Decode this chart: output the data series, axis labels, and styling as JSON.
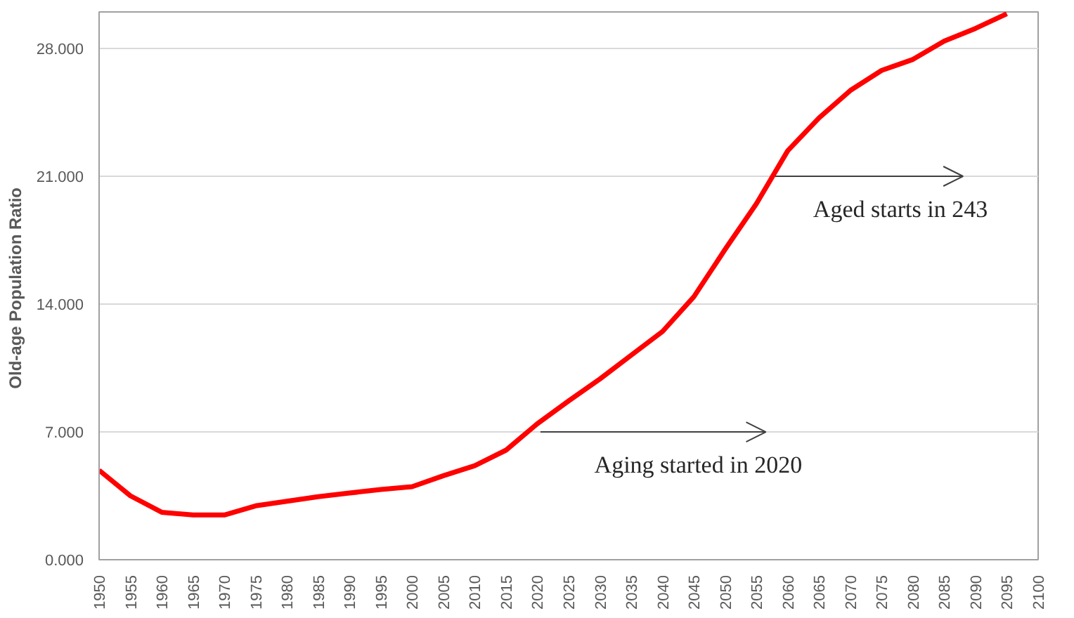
{
  "chart_data": {
    "type": "line",
    "ylabel": "Old-age  Population Ratio",
    "x": [
      1950,
      1955,
      1960,
      1965,
      1970,
      1975,
      1980,
      1985,
      1990,
      1995,
      2000,
      2005,
      2010,
      2015,
      2020,
      2025,
      2030,
      2035,
      2040,
      2045,
      2050,
      2055,
      2060,
      2065,
      2070,
      2075,
      2080,
      2085,
      2090,
      2095
    ],
    "series": [
      {
        "color": "#ff0000",
        "values": [
          4.9,
          3.5,
          2.6,
          2.45,
          2.45,
          2.95,
          3.2,
          3.45,
          3.65,
          3.85,
          4.0,
          4.6,
          5.15,
          6.0,
          7.45,
          8.7,
          9.9,
          11.2,
          12.5,
          14.4,
          17.0,
          19.5,
          22.4,
          24.2,
          25.7,
          26.8,
          27.4,
          28.4,
          29.1,
          29.9
        ]
      }
    ],
    "xlim": [
      1950,
      2100
    ],
    "xticks": [
      1950,
      1955,
      1960,
      1965,
      1970,
      1975,
      1980,
      1985,
      1990,
      1995,
      2000,
      2005,
      2010,
      2015,
      2020,
      2025,
      2030,
      2035,
      2040,
      2045,
      2050,
      2055,
      2060,
      2065,
      2070,
      2075,
      2080,
      2085,
      2090,
      2095,
      2100
    ],
    "ylim": [
      0,
      30
    ],
    "yticks": [
      {
        "value": 0,
        "label": "0.000"
      },
      {
        "value": 7,
        "label": "7.000"
      },
      {
        "value": 14,
        "label": "14.000"
      },
      {
        "value": 21,
        "label": "21.000"
      },
      {
        "value": 28,
        "label": "28.000"
      }
    ],
    "grid": "y",
    "marker": "none",
    "line_style": "solid",
    "annotations": [
      {
        "text": "Aged starts in 243",
        "x": 2058,
        "y": 21
      },
      "Aging started in 2020"
    ]
  }
}
